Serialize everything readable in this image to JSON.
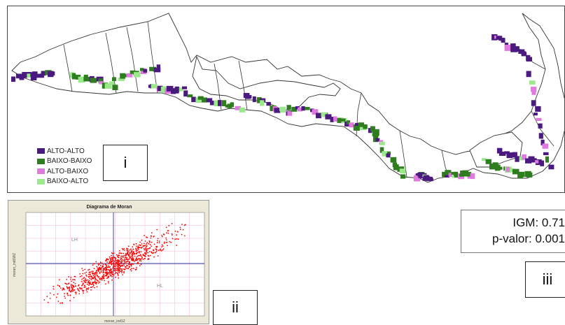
{
  "map": {
    "legend": [
      {
        "label": "ALTO-ALTO",
        "color": "#4b1a7f"
      },
      {
        "label": "BAIXO-BAIXO",
        "color": "#2e7d1e"
      },
      {
        "label": "ALTO-BAIXO",
        "color": "#e07ae0"
      },
      {
        "label": "BAIXO-ALTO",
        "color": "#9ce88c"
      }
    ],
    "panel_label": "i"
  },
  "moran": {
    "title": "Diagrama de Moran",
    "quadrant_lh": "LH",
    "quadrant_hl": "HL",
    "xlabel": "moran_ind1Z",
    "ylabel": "moran_ind1WZ",
    "panel_label": "ii",
    "point_color": "#ff0000"
  },
  "stats": {
    "igm": "IGM: 0.71",
    "p_valor": "p-valor: 0.001",
    "panel_label": "iii"
  }
}
